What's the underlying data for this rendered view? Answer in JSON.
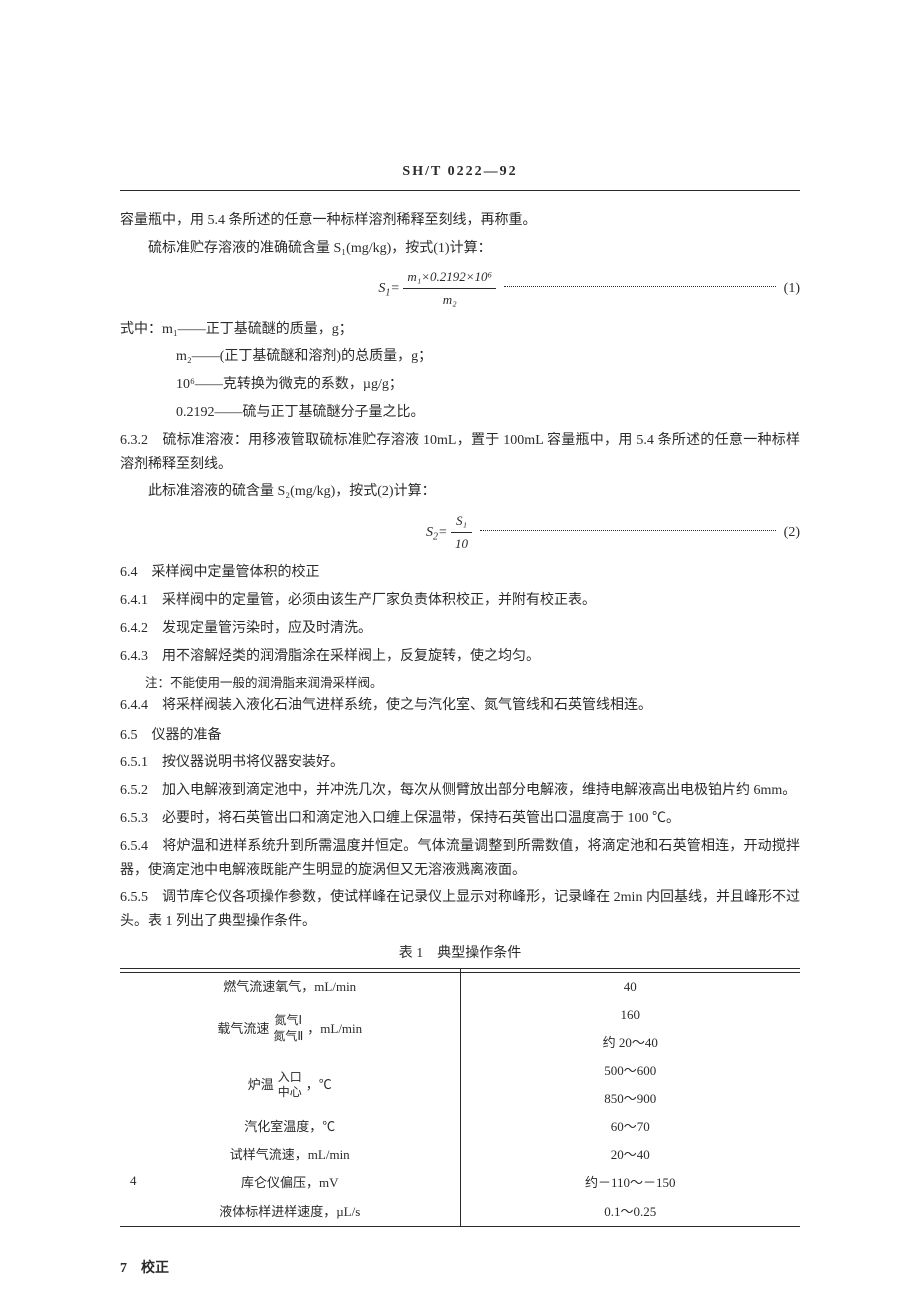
{
  "header": "SH/T 0222—92",
  "p1": "容量瓶中，用 5.4 条所述的任意一种标样溶剂稀释至刻线，再称重。",
  "p2": "硫标准贮存溶液的准确硫含量 S₁(mg/kg)，按式(1)计算：",
  "eq1_lhs": "S",
  "eq1_sub": "1",
  "eq1_num": "m₁×0.2192×10⁶",
  "eq1_den": "m₂",
  "eq1_no": "(1)",
  "p3": "式中：m₁——正丁基硫醚的质量，g；",
  "p4": "m₂——(正丁基硫醚和溶剂)的总质量，g；",
  "p5": "10⁶——克转换为微克的系数，µg/g；",
  "p6": "0.2192——硫与正丁基硫醚分子量之比。",
  "p7": "6.3.2　硫标准溶液：用移液管取硫标准贮存溶液 10mL，置于 100mL 容量瓶中，用 5.4 条所述的任意一种标样溶剂稀释至刻线。",
  "p8": "此标准溶液的硫含量 S₂(mg/kg)，按式(2)计算：",
  "eq2_lhs": "S",
  "eq2_sub": "2",
  "eq2_num": "S₁",
  "eq2_den": "10",
  "eq2_no": "(2)",
  "s64": "6.4　采样阀中定量管体积的校正",
  "s641": "6.4.1　采样阀中的定量管，必须由该生产厂家负责体积校正，并附有校正表。",
  "s642": "6.4.2　发现定量管污染时，应及时清洗。",
  "s643": "6.4.3　用不溶解烃类的润滑脂涂在采样阀上，反复旋转，使之均匀。",
  "note1": "注：不能使用一般的润滑脂来润滑采样阀。",
  "s644": "6.4.4　将采样阀装入液化石油气进样系统，使之与汽化室、氮气管线和石英管线相连。",
  "s65": "6.5　仪器的准备",
  "s651": "6.5.1　按仪器说明书将仪器安装好。",
  "s652": "6.5.2　加入电解液到滴定池中，并冲洗几次，每次从侧臂放出部分电解液，维持电解液高出电极铂片约 6mm。",
  "s653": "6.5.3　必要时，将石英管出口和滴定池入口缠上保温带，保持石英管出口温度高于 100 ℃。",
  "s654": "6.5.4　将炉温和进样系统升到所需温度并恒定。气体流量调整到所需数值，将滴定池和石英管相连，开动搅拌器，使滴定池中电解液既能产生明显的旋涡但又无溶液溅离液面。",
  "s655": "6.5.5　调节库仑仪各项操作参数，使试样峰在记录仪上显示对称峰形，记录峰在 2min 内回基线，并且峰形不过头。表 1 列出了典型操作条件。",
  "table_title": "表 1　典型操作条件",
  "trows": [
    {
      "l": "燃气流速氧气，mL/min",
      "r": "40"
    },
    {
      "l_pre": "载气流速",
      "l_a": "氮气Ⅰ",
      "l_b": "氮气Ⅱ",
      "l_post": "，mL/min",
      "r_a": "160",
      "r_b": "约 20～40"
    },
    {
      "l_pre": "炉温",
      "l_a": "入口",
      "l_b": "中心",
      "l_post": "，℃",
      "r_a": "500～600",
      "r_b": "850～900"
    },
    {
      "l": "汽化室温度，℃",
      "r": "60～70"
    },
    {
      "l": "试样气流速，mL/min",
      "r": "20～40"
    },
    {
      "l": "库仑仪偏压，mV",
      "r": "约－110～－150"
    },
    {
      "l": "液体标样进样速度，µL/s",
      "r": "0.1～0.25"
    }
  ],
  "sec7": "7　校正",
  "pagenum": "4"
}
